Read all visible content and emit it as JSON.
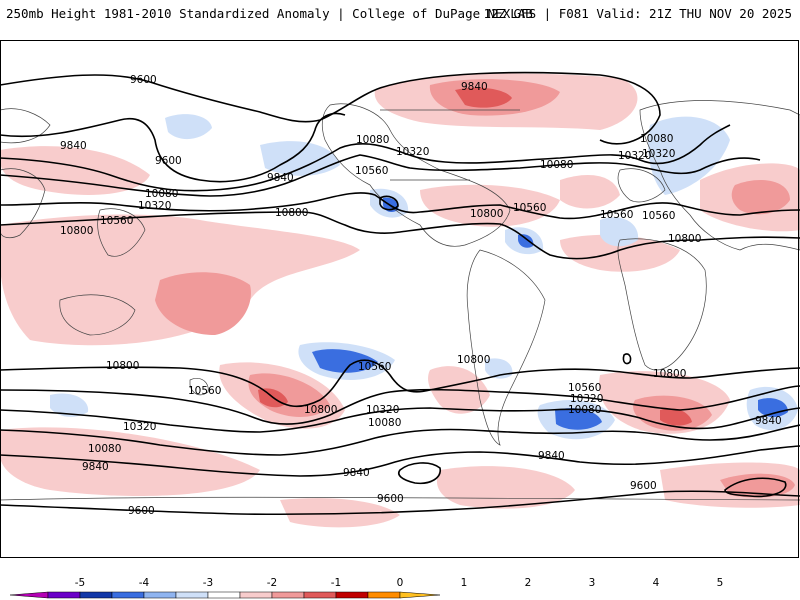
{
  "header": {
    "left": "250mb Height 1981-2010 Standardized Anomaly | College of DuPage NEXLAB",
    "right": "12Z GFS | F081 Valid: 21Z THU NOV 20 2025"
  },
  "contour_labels": [
    {
      "id": "c1",
      "text": "9600"
    },
    {
      "id": "c2",
      "text": "9840"
    },
    {
      "id": "c3",
      "text": "9600"
    },
    {
      "id": "c4",
      "text": "9840"
    },
    {
      "id": "c5",
      "text": "10080"
    },
    {
      "id": "c6",
      "text": "10320"
    },
    {
      "id": "c7",
      "text": "10560"
    },
    {
      "id": "c8",
      "text": "10800"
    },
    {
      "id": "c9",
      "text": "10800"
    },
    {
      "id": "c10",
      "text": "10560"
    },
    {
      "id": "c11",
      "text": "10320"
    },
    {
      "id": "c12",
      "text": "10080"
    },
    {
      "id": "c13",
      "text": "10800"
    },
    {
      "id": "c14",
      "text": "10560"
    },
    {
      "id": "c15",
      "text": "10080"
    },
    {
      "id": "c16",
      "text": "10320"
    },
    {
      "id": "c17",
      "text": "10560"
    },
    {
      "id": "c18",
      "text": "10800"
    },
    {
      "id": "c19",
      "text": "9840"
    },
    {
      "id": "c20",
      "text": "10080"
    },
    {
      "id": "c21",
      "text": "10320"
    },
    {
      "id": "c22",
      "text": "10560"
    },
    {
      "id": "c23",
      "text": "10800"
    },
    {
      "id": "c24",
      "text": "10800"
    },
    {
      "id": "c25",
      "text": "10560"
    },
    {
      "id": "c26",
      "text": "10320"
    },
    {
      "id": "c27",
      "text": "10080"
    },
    {
      "id": "c28",
      "text": "9840"
    },
    {
      "id": "c29",
      "text": "9600"
    },
    {
      "id": "c30",
      "text": "10800"
    },
    {
      "id": "c31",
      "text": "10560"
    },
    {
      "id": "c32",
      "text": "10320"
    },
    {
      "id": "c33",
      "text": "10080"
    },
    {
      "id": "c34",
      "text": "9840"
    },
    {
      "id": "c35",
      "text": "9600"
    },
    {
      "id": "c36",
      "text": "10560"
    },
    {
      "id": "c37",
      "text": "10320"
    },
    {
      "id": "c38",
      "text": "10080"
    },
    {
      "id": "c39",
      "text": "9840"
    },
    {
      "id": "c40",
      "text": "10800"
    },
    {
      "id": "c41",
      "text": "9840"
    },
    {
      "id": "c42",
      "text": "9600"
    },
    {
      "id": "c43",
      "text": "9840"
    }
  ],
  "colorbar": {
    "ticks": [
      "-5",
      "-4",
      "-3",
      "-2",
      "-1",
      "0",
      "1",
      "2",
      "3",
      "4",
      "5"
    ],
    "colors": [
      "#b400b4",
      "#6a00c8",
      "#1238a8",
      "#3a6ee0",
      "#8fb4f0",
      "#cfe0f8",
      "#ffffff",
      "#f8cccc",
      "#f09a9a",
      "#e05a5a",
      "#c00000",
      "#ff8c00",
      "#ffc020"
    ]
  }
}
